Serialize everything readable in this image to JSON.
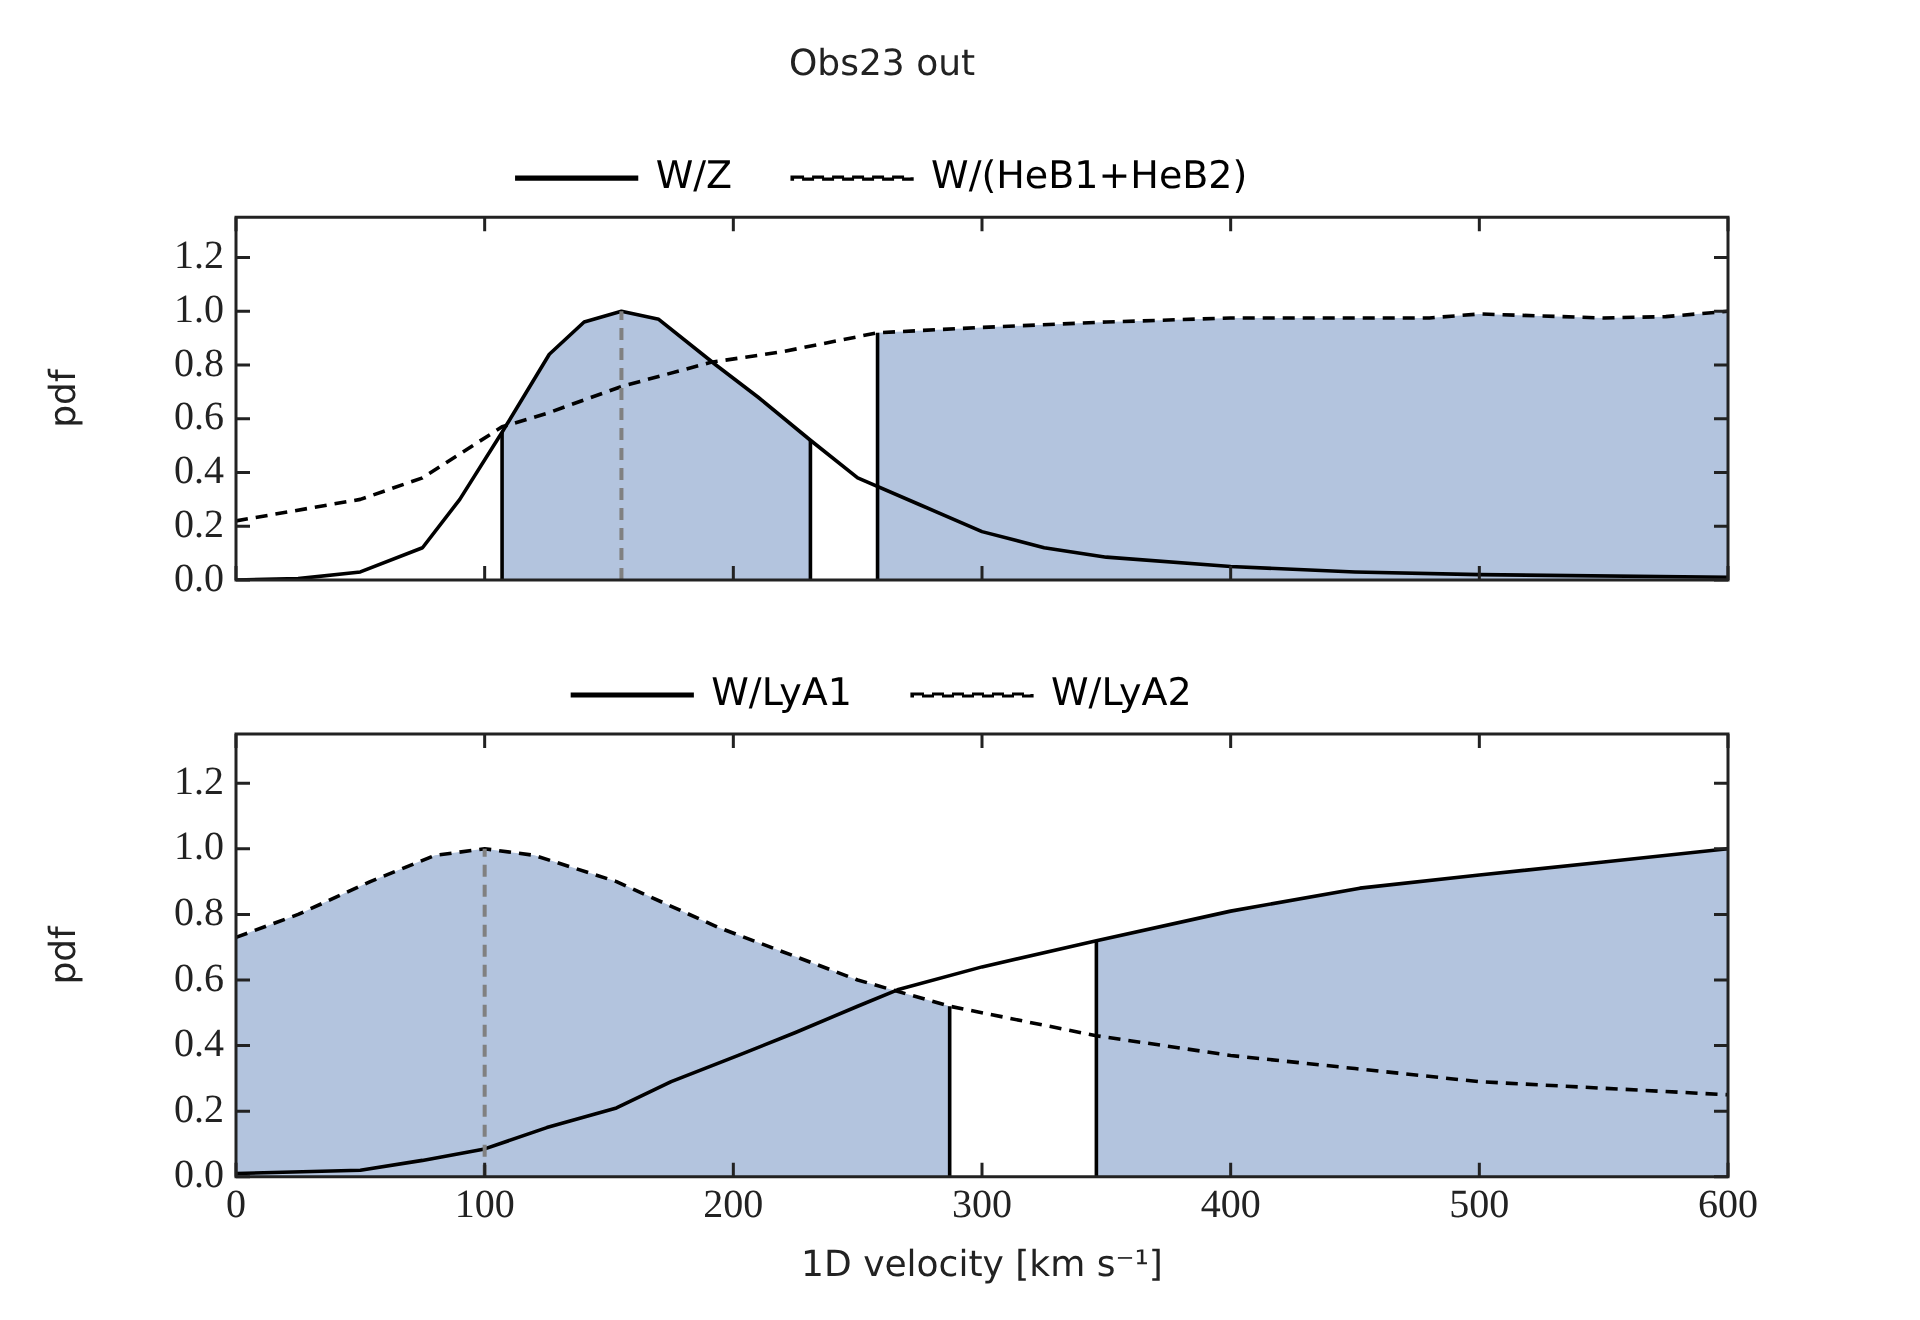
{
  "chart_data": [
    {
      "type": "line",
      "title": "Obs23 out",
      "ylabel": "pdf",
      "xlim": [
        0,
        600
      ],
      "xticks": [
        0,
        100,
        200,
        300,
        400,
        500,
        600
      ],
      "ylim": [
        0,
        1.35
      ],
      "yticks": [
        {
          "value": 0,
          "label": "0.0"
        },
        {
          "value": 0.2,
          "label": "0.2"
        },
        {
          "value": 0.4,
          "label": "0.4"
        },
        {
          "value": 0.6,
          "label": "0.6"
        },
        {
          "value": 0.8,
          "label": "0.8"
        },
        {
          "value": 1,
          "label": "1.0"
        },
        {
          "value": 1.2,
          "label": "1.2"
        }
      ],
      "tick_labels": "y",
      "legend": "top",
      "series": [
        {
          "type": "area",
          "color": "#b3c4de",
          "x": [
            107,
            107,
            126,
            140,
            155,
            170,
            193,
            210,
            231,
            231
          ],
          "values": [
            0,
            0.55,
            0.84,
            0.96,
            1.0,
            0.97,
            0.8,
            0.68,
            0.52,
            0
          ]
        },
        {
          "type": "area",
          "color": "#b3c4de",
          "x": [
            258,
            258,
            300,
            350,
            400,
            450,
            480,
            500,
            550,
            575,
            600
          ],
          "values": [
            0,
            0.92,
            0.94,
            0.96,
            0.975,
            0.975,
            0.975,
            0.99,
            0.975,
            0.98,
            1.0
          ]
        },
        {
          "name": "W/Z",
          "color": "#000000",
          "line_style": "solid",
          "x": [
            0,
            25,
            50,
            75,
            90,
            107,
            126,
            140,
            155,
            170,
            193,
            210,
            231,
            250,
            275,
            300,
            325,
            350,
            400,
            450,
            500,
            600
          ],
          "values": [
            0,
            0.005,
            0.03,
            0.12,
            0.3,
            0.55,
            0.84,
            0.96,
            1.0,
            0.97,
            0.8,
            0.68,
            0.52,
            0.38,
            0.28,
            0.18,
            0.12,
            0.085,
            0.05,
            0.03,
            0.02,
            0.01
          ]
        },
        {
          "name": "W/(HeB1+HeB2)",
          "color": "#000000",
          "line_style": "dashed",
          "x": [
            0,
            50,
            75,
            107,
            125,
            155,
            191,
            220,
            258,
            300,
            350,
            400,
            450,
            480,
            500,
            550,
            575,
            600
          ],
          "values": [
            0.22,
            0.3,
            0.38,
            0.57,
            0.62,
            0.72,
            0.81,
            0.85,
            0.92,
            0.94,
            0.96,
            0.975,
            0.975,
            0.975,
            0.99,
            0.975,
            0.98,
            1.0
          ]
        },
        {
          "color": "#000000",
          "line_style": "solid",
          "x": [
            107,
            107
          ],
          "values": [
            0,
            0.55
          ]
        },
        {
          "color": "#000000",
          "line_style": "solid",
          "x": [
            231,
            231
          ],
          "values": [
            0,
            0.52
          ]
        },
        {
          "color": "#000000",
          "line_style": "solid",
          "x": [
            258,
            258
          ],
          "values": [
            0,
            0.92
          ]
        }
      ],
      "ref_lines": [
        {
          "axis": "x",
          "value": 155,
          "color": "#808080",
          "line_style": "dashed"
        }
      ]
    },
    {
      "type": "line",
      "xlabel": "1D velocity [km s⁻¹]",
      "ylabel": "pdf",
      "xlim": [
        0,
        600
      ],
      "xticks": [
        0,
        100,
        200,
        300,
        400,
        500,
        600
      ],
      "ylim": [
        0,
        1.35
      ],
      "yticks": [
        {
          "value": 0,
          "label": "0.0"
        },
        {
          "value": 0.2,
          "label": "0.2"
        },
        {
          "value": 0.4,
          "label": "0.4"
        },
        {
          "value": 0.6,
          "label": "0.6"
        },
        {
          "value": 0.8,
          "label": "0.8"
        },
        {
          "value": 1,
          "label": "1.0"
        },
        {
          "value": 1.2,
          "label": "1.2"
        }
      ],
      "legend": "top",
      "series": [
        {
          "type": "area",
          "color": "#b3c4de",
          "x": [
            0,
            25,
            54,
            80,
            100,
            120,
            153,
            194,
            250,
            287,
            287
          ],
          "values": [
            0.73,
            0.8,
            0.9,
            0.98,
            1.0,
            0.98,
            0.9,
            0.76,
            0.6,
            0.52,
            0
          ]
        },
        {
          "type": "area",
          "color": "#b3c4de",
          "x": [
            346,
            346,
            400,
            450,
            500,
            550,
            600
          ],
          "values": [
            0,
            0.72,
            0.81,
            0.88,
            0.92,
            0.96,
            1.0
          ]
        },
        {
          "name": "W/LyA1",
          "color": "#000000",
          "line_style": "solid",
          "x": [
            0,
            50,
            75,
            100,
            125,
            153,
            175,
            202,
            225,
            250,
            266,
            300,
            346,
            400,
            452,
            500,
            550,
            600
          ],
          "values": [
            0.01,
            0.02,
            0.05,
            0.085,
            0.15,
            0.21,
            0.29,
            0.37,
            0.44,
            0.52,
            0.57,
            0.64,
            0.72,
            0.81,
            0.88,
            0.92,
            0.96,
            1.0
          ]
        },
        {
          "name": "W/LyA2",
          "color": "#000000",
          "line_style": "dashed",
          "x": [
            0,
            25,
            54,
            80,
            100,
            120,
            153,
            194,
            250,
            287,
            346,
            400,
            450,
            500,
            550,
            600
          ],
          "values": [
            0.73,
            0.8,
            0.9,
            0.98,
            1.0,
            0.98,
            0.9,
            0.76,
            0.6,
            0.52,
            0.43,
            0.37,
            0.33,
            0.29,
            0.27,
            0.25
          ]
        },
        {
          "color": "#000000",
          "line_style": "solid",
          "x": [
            287,
            287
          ],
          "values": [
            0,
            0.52
          ]
        },
        {
          "color": "#000000",
          "line_style": "solid",
          "x": [
            346,
            346
          ],
          "values": [
            0,
            0.72
          ]
        }
      ],
      "ref_lines": [
        {
          "axis": "x",
          "value": 100,
          "color": "#808080",
          "line_style": "dashed"
        }
      ]
    }
  ]
}
